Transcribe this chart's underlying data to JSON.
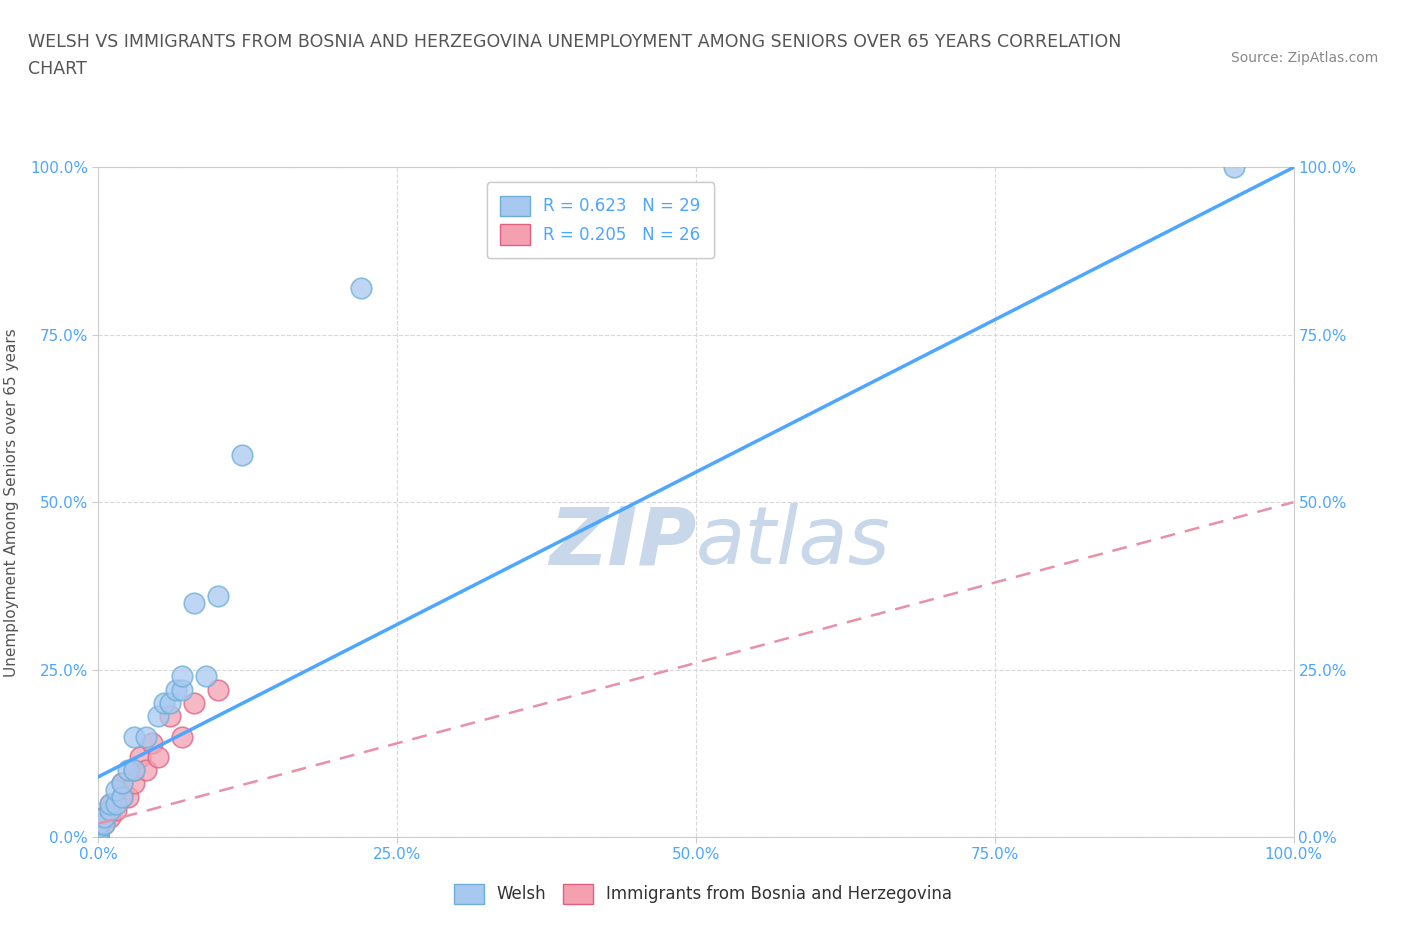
{
  "title_line1": "WELSH VS IMMIGRANTS FROM BOSNIA AND HERZEGOVINA UNEMPLOYMENT AMONG SENIORS OVER 65 YEARS CORRELATION",
  "title_line2": "CHART",
  "source_text": "Source: ZipAtlas.com",
  "ylabel": "Unemployment Among Seniors over 65 years",
  "xlim": [
    0,
    1.0
  ],
  "ylim": [
    0,
    1.0
  ],
  "xticks": [
    0.0,
    0.25,
    0.5,
    0.75,
    1.0
  ],
  "yticks": [
    0.0,
    0.25,
    0.5,
    0.75,
    1.0
  ],
  "xticklabels": [
    "0.0%",
    "25.0%",
    "50.0%",
    "75.0%",
    "100.0%"
  ],
  "yticklabels": [
    "0.0%",
    "25.0%",
    "50.0%",
    "75.0%",
    "100.0%"
  ],
  "welsh_color": "#a8c8f0",
  "welsh_edge_color": "#6baed6",
  "bosnia_color": "#f4a0b0",
  "bosnia_edge_color": "#e06080",
  "line_welsh_color": "#4da6ff",
  "line_bosnia_color": "#e890a8",
  "watermark_color": "#c8d8ea",
  "grid_color": "#d8d8d8",
  "R_welsh": 0.623,
  "N_welsh": 29,
  "R_bosnia": 0.205,
  "N_bosnia": 26,
  "welsh_x": [
    0.0,
    0.0,
    0.0,
    0.0,
    0.0,
    0.005,
    0.005,
    0.01,
    0.01,
    0.015,
    0.015,
    0.02,
    0.02,
    0.025,
    0.03,
    0.03,
    0.04,
    0.05,
    0.055,
    0.06,
    0.065,
    0.07,
    0.07,
    0.08,
    0.09,
    0.1,
    0.12,
    0.95,
    0.22
  ],
  "welsh_y": [
    0.0,
    0.005,
    0.01,
    0.015,
    0.02,
    0.02,
    0.03,
    0.04,
    0.05,
    0.05,
    0.07,
    0.06,
    0.08,
    0.1,
    0.1,
    0.15,
    0.15,
    0.18,
    0.2,
    0.2,
    0.22,
    0.22,
    0.24,
    0.35,
    0.24,
    0.36,
    0.57,
    1.0,
    0.82
  ],
  "bosnia_x": [
    0.0,
    0.0,
    0.0,
    0.0,
    0.0,
    0.0,
    0.0,
    0.0,
    0.005,
    0.005,
    0.01,
    0.01,
    0.015,
    0.02,
    0.02,
    0.025,
    0.03,
    0.03,
    0.035,
    0.04,
    0.045,
    0.05,
    0.06,
    0.07,
    0.08,
    0.1
  ],
  "bosnia_y": [
    0.0,
    0.0,
    0.005,
    0.01,
    0.01,
    0.015,
    0.02,
    0.025,
    0.02,
    0.03,
    0.03,
    0.05,
    0.04,
    0.06,
    0.08,
    0.06,
    0.08,
    0.1,
    0.12,
    0.1,
    0.14,
    0.12,
    0.18,
    0.15,
    0.2,
    0.22
  ],
  "welsh_line_x": [
    0.0,
    1.0
  ],
  "welsh_line_y": [
    0.09,
    1.0
  ],
  "bosnia_line_x": [
    0.0,
    1.0
  ],
  "bosnia_line_y": [
    0.02,
    0.5
  ],
  "legend_labels": [
    "Welsh",
    "Immigrants from Bosnia and Herzegovina"
  ],
  "title_color": "#555555",
  "tick_color": "#4da6ff",
  "source_color": "#888888"
}
